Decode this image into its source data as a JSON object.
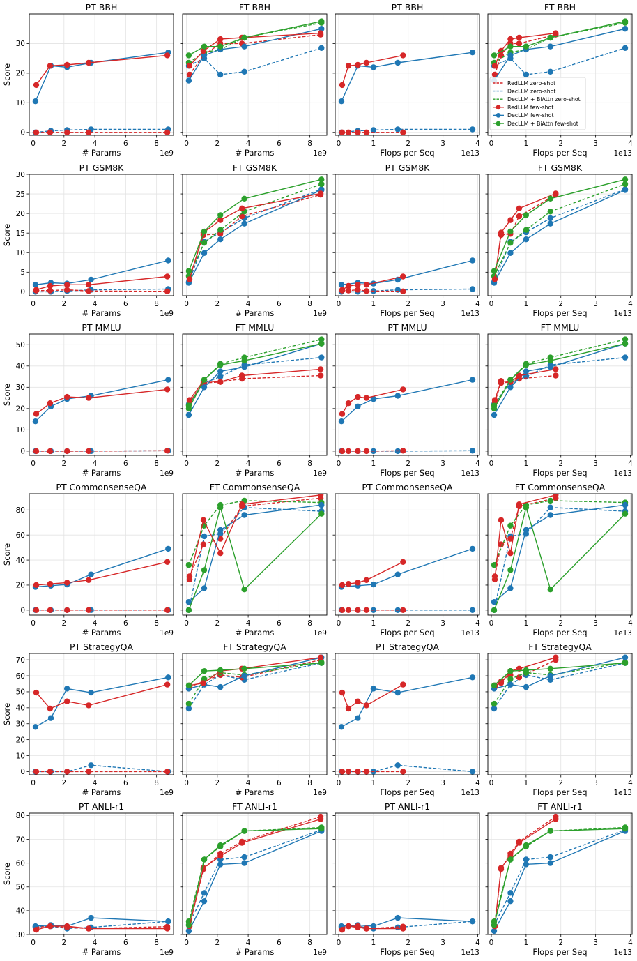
{
  "colors": {
    "redllm": "#d62728",
    "decllm": "#1f77b4",
    "biattn": "#2ca02c",
    "grid": "#e3e3e3",
    "axis": "#000000"
  },
  "legend": [
    {
      "label": "RedLLM zero-shot",
      "series": "red",
      "style": "dashed"
    },
    {
      "label": "DecLLM zero-shot",
      "series": "blue",
      "style": "dashed"
    },
    {
      "label": "DecLLM + BiAttn zero-shot",
      "series": "green",
      "style": "dashed"
    },
    {
      "label": "RedLLM few-shot",
      "series": "red",
      "style": "solid"
    },
    {
      "label": "DecLLM few-shot",
      "series": "blue",
      "style": "solid"
    },
    {
      "label": "DecLLM + BiAttn few-shot",
      "series": "green",
      "style": "solid"
    }
  ],
  "chart_data": {
    "type": "line",
    "layout": "6 rows x 4 columns of line charts",
    "legend_panel": "FT BBH (flops)",
    "legend_location": "middle-left",
    "y_label": "Score",
    "x_axes": {
      "params": {
        "label": "# Params",
        "offset_text": "1e9",
        "ticks": [
          0,
          2,
          4,
          6,
          8
        ],
        "xlim": [
          -0.25,
          9.1
        ]
      },
      "flops": {
        "label": "Flops per Seq",
        "offset_text": "1e13",
        "ticks": [
          0,
          1,
          2,
          3,
          4
        ],
        "xlim": [
          -0.1,
          4.05
        ]
      }
    },
    "x_values": {
      "params_redllm": [
        0.2,
        1.1,
        2.2,
        3.6,
        8.7
      ],
      "params_decllm": [
        0.15,
        1.15,
        2.2,
        3.75,
        8.75
      ],
      "flops_redllm": [
        0.1,
        0.28,
        0.55,
        0.8,
        1.85
      ],
      "flops_decllm": [
        0.08,
        0.55,
        1.0,
        1.7,
        3.85
      ]
    },
    "rows": [
      {
        "task": "BBH",
        "ylim": [
          -1,
          40
        ],
        "yticks": [
          0,
          10,
          20,
          30
        ],
        "pt_title": "PT BBH",
        "ft_title": "FT BBH",
        "pt_flops_title": "PT BBH",
        "ft_flops_title": "FT BBH",
        "pt": {
          "red_zero": [
            0,
            0,
            0,
            0,
            0
          ],
          "blue_zero": [
            0,
            0.5,
            0.8,
            1,
            1
          ],
          "red_few": [
            16,
            22.5,
            22.8,
            23.5,
            26
          ],
          "blue_few": [
            10.5,
            22.5,
            22,
            23.5,
            27
          ]
        },
        "ft": {
          "red_zero": [
            19.5,
            26,
            30,
            30,
            33
          ],
          "blue_zero": [
            22.5,
            25,
            19.5,
            20.5,
            28.5
          ],
          "green_zero": [
            23.5,
            27,
            28,
            32,
            37
          ],
          "red_few": [
            22.5,
            27.5,
            31.5,
            32,
            33.5
          ],
          "blue_few": [
            17.5,
            26,
            28,
            29,
            35
          ],
          "green_few": [
            26,
            29,
            29,
            32,
            37.5
          ]
        }
      },
      {
        "task": "GSM8K",
        "ylim": [
          -1,
          30
        ],
        "yticks": [
          0,
          5,
          10,
          15,
          20,
          25,
          30
        ],
        "pt_title": "PT GSM8K",
        "ft_title": "FT GSM8K",
        "pt_flops_title": "PT GSM8K",
        "ft_flops_title": "FT GSM8K",
        "pt": {
          "red_zero": [
            0.3,
            0.3,
            0.5,
            0.2,
            0.1
          ],
          "blue_zero": [
            0,
            0,
            0.2,
            0.5,
            0.7
          ],
          "red_few": [
            0.5,
            1.5,
            1.8,
            1.8,
            3.9
          ],
          "blue_few": [
            1.8,
            2.3,
            2.1,
            3.1,
            8
          ]
        },
        "ft": {
          "red_zero": [
            3.5,
            14.5,
            14.8,
            19.3,
            24.8
          ],
          "blue_zero": [
            2.5,
            12.8,
            15.2,
            18.8,
            26.2
          ],
          "green_zero": [
            4,
            12.5,
            15.8,
            20.5,
            27.5
          ],
          "red_few": [
            3.2,
            15.1,
            18.3,
            21.3,
            25.1
          ],
          "blue_few": [
            2.3,
            9.9,
            13.4,
            17.4,
            26
          ],
          "green_few": [
            5.3,
            15.4,
            19.6,
            23.8,
            28.7
          ]
        }
      },
      {
        "task": "MMLU",
        "ylim": [
          -2,
          55
        ],
        "yticks": [
          0,
          10,
          20,
          30,
          40,
          50
        ],
        "pt_title": "PT MMLU",
        "ft_title": "FT MMLU",
        "pt_flops_title": "PT MMLU",
        "ft_flops_title": "FT MMLU",
        "pt": {
          "red_zero": [
            0,
            0,
            0,
            0,
            0.2
          ],
          "blue_zero": [
            0,
            0,
            0,
            0,
            0.2
          ],
          "red_few": [
            17.5,
            22.5,
            25.5,
            25,
            29
          ],
          "blue_few": [
            14,
            21,
            24.5,
            26,
            33.5
          ]
        },
        "ft": {
          "red_zero": [
            23,
            32,
            32.5,
            34,
            35.5
          ],
          "blue_zero": [
            22,
            32,
            35,
            40.5,
            44
          ],
          "green_zero": [
            21.5,
            33.5,
            41,
            44,
            52.5
          ],
          "red_few": [
            24,
            33,
            32.5,
            35.5,
            38.5
          ],
          "blue_few": [
            17,
            30,
            37.5,
            39.5,
            50.5
          ],
          "green_few": [
            20,
            33.5,
            40.5,
            42.5,
            50.5
          ]
        }
      },
      {
        "task": "CommonsenseQA",
        "ylim": [
          -4,
          93
        ],
        "yticks": [
          0,
          20,
          40,
          60,
          80
        ],
        "pt_title": "PT CommonsenseQA",
        "ft_title": "FT CommonsenseQA",
        "pt_flops_title": "PT CommonsenseQA",
        "ft_flops_title": "FT CommonsenseQA",
        "pt": {
          "red_zero": [
            0,
            0,
            0,
            0,
            0
          ],
          "blue_zero": [
            0,
            0,
            0,
            0,
            0
          ],
          "red_few": [
            20,
            21,
            22,
            24,
            38.5
          ],
          "blue_few": [
            18.5,
            19.5,
            20.5,
            28.5,
            49
          ]
        },
        "ft": {
          "red_zero": [
            27,
            52.5,
            57,
            83,
            89.5
          ],
          "blue_zero": [
            0,
            59,
            61,
            82,
            79
          ],
          "green_zero": [
            36,
            67.5,
            84,
            87.5,
            86
          ],
          "red_few": [
            24.5,
            72,
            45.5,
            84.5,
            92
          ],
          "blue_few": [
            6.5,
            17.5,
            64,
            76,
            84
          ],
          "green_few": [
            0,
            32,
            82,
            16.5,
            77
          ]
        }
      },
      {
        "task": "StrategyQA",
        "ylim": [
          -2,
          74
        ],
        "yticks": [
          0,
          10,
          20,
          30,
          40,
          50,
          60,
          70
        ],
        "pt_title": "PT StrategyQA",
        "ft_title": "FT StrategyQA",
        "pt_flops_title": "PT StrategyQA",
        "ft_flops_title": "FT StrategyQA",
        "pt": {
          "red_zero": [
            0,
            0,
            0,
            0,
            0
          ],
          "blue_zero": [
            0,
            0,
            0,
            4,
            0
          ],
          "red_few": [
            49.5,
            39.5,
            44,
            41.5,
            54.5
          ],
          "blue_few": [
            28,
            33.5,
            52,
            49.5,
            59
          ]
        },
        "ft": {
          "red_zero": [
            53,
            56.5,
            60.5,
            59,
            70
          ],
          "blue_zero": [
            39.5,
            54.5,
            60.5,
            57.5,
            68
          ],
          "green_zero": [
            42.5,
            58,
            62,
            60.5,
            68.5
          ],
          "red_few": [
            54,
            55.5,
            63,
            64.5,
            71.5
          ],
          "blue_few": [
            52,
            54.5,
            53,
            60,
            71.5
          ],
          "green_few": [
            54,
            63,
            63.5,
            64.5,
            68
          ]
        }
      },
      {
        "task": "ANLI-r1",
        "ylim": [
          30,
          81
        ],
        "yticks": [
          30,
          40,
          50,
          60,
          70,
          80
        ],
        "pt_title": "PT ANLI-r1",
        "ft_title": "FT ANLI-r1",
        "pt_flops_title": "PT ANLI-r1",
        "ft_flops_title": "FT ANLI-r1",
        "pt": {
          "red_zero": [
            33,
            33.5,
            33,
            32.5,
            33.3
          ],
          "blue_zero": [
            33.2,
            33.5,
            32.5,
            33,
            35.5
          ],
          "red_few": [
            32,
            33.5,
            33.5,
            32.5,
            32.5
          ],
          "blue_few": [
            33.5,
            34,
            33.5,
            37,
            35.5
          ]
        },
        "ft": {
          "red_zero": [
            33.5,
            57.5,
            64,
            69,
            79.5
          ],
          "blue_zero": [
            34,
            47.5,
            61.5,
            62.5,
            74
          ],
          "green_zero": [
            35.5,
            61.5,
            67,
            73.5,
            75
          ],
          "red_few": [
            33.5,
            58,
            63,
            68.5,
            78.5
          ],
          "blue_few": [
            31.5,
            44,
            59.5,
            60,
            73.5
          ],
          "green_few": [
            34,
            61.5,
            67.5,
            73.5,
            74.5
          ]
        }
      }
    ]
  }
}
